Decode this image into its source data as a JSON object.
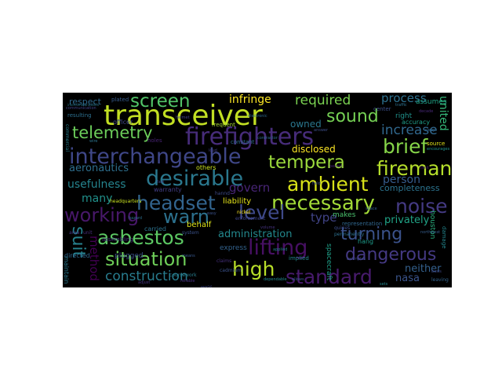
{
  "wordcloud": {
    "words": [
      {
        "text": "transceiver",
        "color": "#c2df23"
      },
      {
        "text": "firefighters",
        "color": "#472c7a"
      },
      {
        "text": "interchangeable",
        "color": "#3f4788"
      },
      {
        "text": "desirable",
        "color": "#2a788e"
      },
      {
        "text": "telemetry",
        "color": "#6ccd5a"
      },
      {
        "text": "screen",
        "color": "#52c569"
      },
      {
        "text": "sound",
        "color": "#75d054"
      },
      {
        "text": "brief",
        "color": "#86d549"
      },
      {
        "text": "fireman",
        "color": "#b5de2b"
      },
      {
        "text": "ambient",
        "color": "#d8e219"
      },
      {
        "text": "tempera",
        "color": "#9bd93c"
      },
      {
        "text": "necessary",
        "color": "#a2da37"
      },
      {
        "text": "headset",
        "color": "#32648e"
      },
      {
        "text": "warn",
        "color": "#2c718e"
      },
      {
        "text": "level",
        "color": "#3e4989"
      },
      {
        "text": "noise",
        "color": "#443a83"
      },
      {
        "text": "working",
        "color": "#48186a"
      },
      {
        "text": "asbestos",
        "color": "#5cc863"
      },
      {
        "text": "lifting",
        "color": "#471063"
      },
      {
        "text": "situation",
        "color": "#6ece58"
      },
      {
        "text": "turning",
        "color": "#3b528b"
      },
      {
        "text": "dangerous",
        "color": "#443983"
      },
      {
        "text": "high",
        "color": "#b8de29"
      },
      {
        "text": "standard",
        "color": "#481b6d"
      },
      {
        "text": "construction",
        "color": "#287c8e"
      },
      {
        "text": "required",
        "color": "#7ad151"
      },
      {
        "text": "increase",
        "color": "#31688e"
      },
      {
        "text": "process",
        "color": "#2d708e"
      },
      {
        "text": "infringe",
        "color": "#fde725"
      },
      {
        "text": "aeronautics",
        "color": "#2e6f8e"
      },
      {
        "text": "usefulness",
        "color": "#25848e"
      },
      {
        "text": "many",
        "color": "#21918c"
      },
      {
        "text": "govern",
        "color": "#482576"
      },
      {
        "text": "administration",
        "color": "#23898e"
      },
      {
        "text": "method",
        "color": "#440154"
      },
      {
        "text": "suit",
        "color": "#26828e"
      },
      {
        "text": "type",
        "color": "#414487"
      },
      {
        "text": "person",
        "color": "#365c8d"
      },
      {
        "text": "privately",
        "color": "#20a386"
      },
      {
        "text": "nasa",
        "color": "#3a548c"
      },
      {
        "text": "neither",
        "color": "#34608d"
      },
      {
        "text": "united",
        "color": "#35b779"
      },
      {
        "text": "disclosed",
        "color": "#fde725"
      },
      {
        "text": "owned",
        "color": "#2a768e"
      },
      {
        "text": "liability",
        "color": "#e5e419"
      },
      {
        "text": "behalf",
        "color": "#dde318"
      },
      {
        "text": "completeness",
        "color": "#2c738e"
      },
      {
        "text": "respect",
        "color": "#306a8e"
      },
      {
        "text": "right",
        "color": "#20928c"
      },
      {
        "text": "accuracy",
        "color": "#1f9e89"
      },
      {
        "text": "makes",
        "color": "#4ac16d"
      },
      {
        "text": "houston",
        "color": "#2ab07f"
      },
      {
        "text": "express",
        "color": "#33638d"
      },
      {
        "text": "spacecraft",
        "color": "#1fa088"
      },
      {
        "text": "assumes",
        "color": "#20a486"
      },
      {
        "text": "frequent",
        "color": "#a8db34"
      },
      {
        "text": "plugged",
        "color": "#3b528b"
      },
      {
        "text": "warranty",
        "color": "#433e85"
      },
      {
        "text": "officer",
        "color": "#3f4889"
      },
      {
        "text": "others",
        "color": "#cae11f"
      },
      {
        "text": "source",
        "color": "#e2e418"
      },
      {
        "text": "nickel",
        "color": "#fde725"
      },
      {
        "text": "carried",
        "color": "#2c728e"
      },
      {
        "text": "representation",
        "color": "#31678e"
      },
      {
        "text": "headquarters",
        "color": "#c8e020"
      },
      {
        "text": "hang",
        "color": "#1e9b8a"
      },
      {
        "text": "directed",
        "color": "#31678e"
      },
      {
        "text": "center",
        "color": "#3c4f8a"
      },
      {
        "text": "implied",
        "color": "#25858e"
      },
      {
        "text": "resulting",
        "color": "#2d708e"
      },
      {
        "text": "enforcement",
        "color": "#404588"
      },
      {
        "text": "holes",
        "color": "#482374"
      },
      {
        "text": "quiries",
        "color": "#3d4d8a"
      },
      {
        "text": "plated",
        "color": "#375b8d"
      },
      {
        "text": "permanently",
        "color": "#2d708e"
      },
      {
        "text": "constant",
        "color": "#2e6e8e"
      },
      {
        "text": "assembling",
        "color": "#46327e"
      },
      {
        "text": "damage",
        "color": "#24878e"
      },
      {
        "text": "maintain",
        "color": "#29798e"
      },
      {
        "text": "area",
        "color": "#46337f"
      },
      {
        "text": "unit",
        "color": "#472c7a"
      },
      {
        "text": "hannd",
        "color": "#3e4c8a"
      },
      {
        "text": "leaving",
        "color": "#33638d"
      },
      {
        "text": "system",
        "color": "#3b528b"
      },
      {
        "text": "communication",
        "color": "#404387"
      },
      {
        "text": "coursework",
        "color": "#287d8e"
      },
      {
        "text": "northwest",
        "color": "#365d8d"
      },
      {
        "text": "claims",
        "color": "#46307e"
      },
      {
        "text": "cadmium",
        "color": "#3b528b"
      },
      {
        "text": "traffic",
        "color": "#2d718e"
      },
      {
        "text": "decade",
        "color": "#482878"
      },
      {
        "text": "allows",
        "color": "#38598c"
      },
      {
        "text": "reliable",
        "color": "#472f7d"
      },
      {
        "text": "basis",
        "color": "#3f4889"
      },
      {
        "text": "dependable",
        "color": "#24878e"
      },
      {
        "text": "adjust",
        "color": "#453581"
      },
      {
        "text": "sleep",
        "color": "#31668e"
      },
      {
        "text": "electronic",
        "color": "#2f6b8e"
      },
      {
        "text": "commercial",
        "color": "#277f8e"
      },
      {
        "text": "examples",
        "color": "#3e4a89"
      },
      {
        "text": "encourages",
        "color": "#20938c"
      },
      {
        "text": "loud",
        "color": "#424086"
      },
      {
        "text": "contractor",
        "color": "#2f6c8e"
      },
      {
        "text": "space",
        "color": "#355f8d"
      },
      {
        "text": "helmet",
        "color": "#424186"
      },
      {
        "text": "answer",
        "color": "#3d4e8a"
      },
      {
        "text": "intercommunication",
        "color": "#29798e"
      },
      {
        "text": "permit",
        "color": "#482071"
      },
      {
        "text": "fast",
        "color": "#404588"
      },
      {
        "text": "easy",
        "color": "#3b518b"
      },
      {
        "text": "means",
        "color": "#38588c"
      },
      {
        "text": "applied",
        "color": "#26818e"
      },
      {
        "text": "wire",
        "color": "#2c738e"
      },
      {
        "text": "limit",
        "color": "#481a6c"
      },
      {
        "text": "world",
        "color": "#3f4889"
      },
      {
        "text": "hazard",
        "color": "#2e6e8e"
      },
      {
        "text": "volume",
        "color": "#45337f"
      },
      {
        "text": "sets",
        "color": "#23898e"
      },
      {
        "text": "field",
        "color": "#3c4f8a"
      }
    ]
  }
}
